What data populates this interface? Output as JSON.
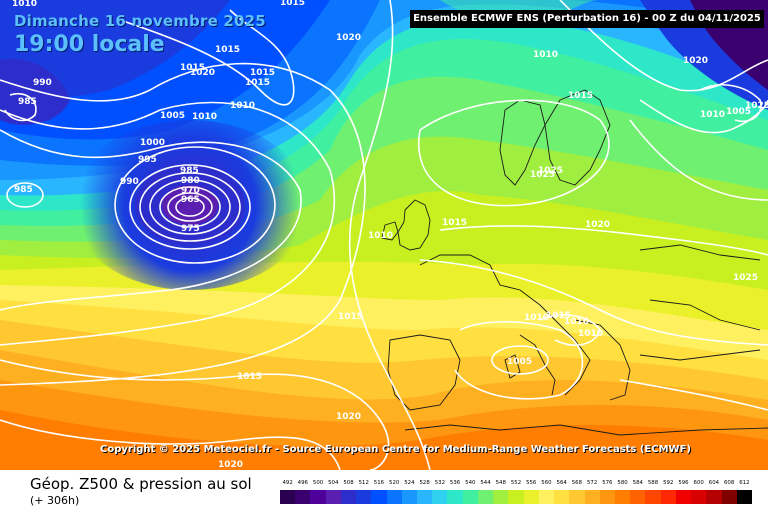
{
  "header": {
    "date_label": "Dimanche 16 novembre 2025",
    "time_label": "19:00 locale",
    "model_label": "Ensemble ECMWF ENS  (Perturbation 16)  -  00 Z du 04/11/2025"
  },
  "copyright": "Copyright © 2025 Meteociel.fr - Source European Centre for Medium-Range Weather Forecasts (ECMWF)",
  "footer": {
    "title": "Géop. Z500 & pression au sol",
    "subtitle": "(+ 306h)"
  },
  "legend": {
    "values": [
      "492",
      "496",
      "500",
      "504",
      "508",
      "512",
      "516",
      "520",
      "524",
      "528",
      "532",
      "536",
      "540",
      "544",
      "548",
      "552",
      "556",
      "560",
      "564",
      "568",
      "572",
      "576",
      "580",
      "584",
      "588",
      "592",
      "596",
      "600",
      "604",
      "608",
      "612"
    ],
    "colors": [
      "#2a0050",
      "#3a0070",
      "#50009a",
      "#5a1fb0",
      "#2d2dcc",
      "#1a3cdf",
      "#0050ff",
      "#0a74ff",
      "#1a96ff",
      "#2ab6ff",
      "#30d0f0",
      "#2ee6c8",
      "#40f0a0",
      "#70f070",
      "#a0ee40",
      "#c8f020",
      "#eaf02a",
      "#fff060",
      "#ffe040",
      "#ffc830",
      "#ffb020",
      "#ff9610",
      "#ff7e00",
      "#ff6200",
      "#ff4600",
      "#ff2800",
      "#f00000",
      "#d80000",
      "#b40000",
      "#800000",
      "#000000"
    ]
  },
  "isobars": [
    "1010",
    "1015",
    "1020",
    "990",
    "985",
    "1015",
    "1020",
    "1015",
    "1015",
    "1015",
    "1010",
    "1005",
    "1010",
    "1000",
    "995",
    "990",
    "985",
    "980",
    "970",
    "965",
    "975",
    "985",
    "1010",
    "1025",
    "1015",
    "1010",
    "1020",
    "1010",
    "1005",
    "1015",
    "1025",
    "1020",
    "1015",
    "1010",
    "1010",
    "1010",
    "1015",
    "1005",
    "1015",
    "1020",
    "1020",
    "1025",
    "1025"
  ]
}
